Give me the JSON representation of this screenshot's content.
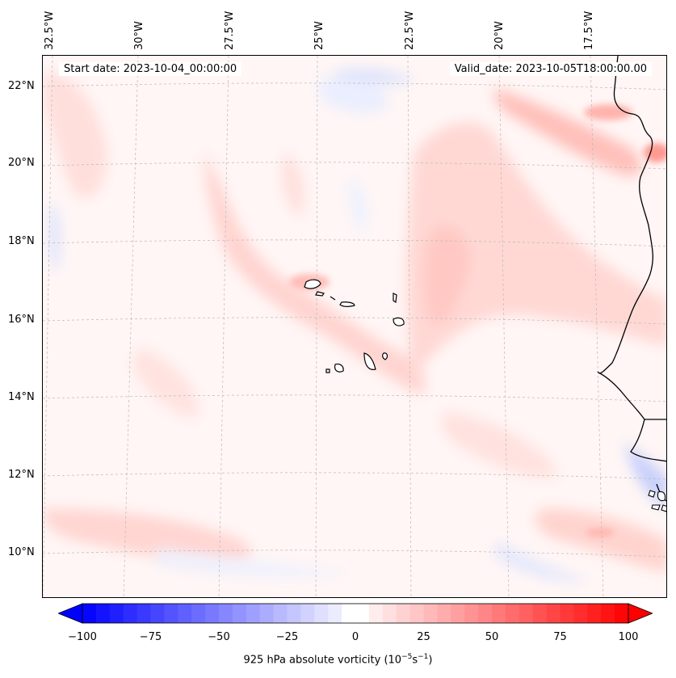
{
  "map": {
    "start_date": "Start date: 2023-10-04_00:00:00",
    "valid_date": "Valid_date: 2023-10-05T18:00:00.00",
    "lon_labels": [
      "32.5°W",
      "30°W",
      "27.5°W",
      "25°W",
      "22.5°W",
      "20°W",
      "17.5°W"
    ],
    "lat_labels": [
      "22°N",
      "20°N",
      "18°N",
      "16°N",
      "14°N",
      "12°N",
      "10°N"
    ],
    "variable": "925 hPa absolute vorticity",
    "colors": {
      "positive_max": "#ff0000",
      "negative_max": "#0000ff",
      "zero": "#ffffff",
      "coastline": "#000000"
    }
  },
  "colorbar": {
    "ticks": [
      "−100",
      "−75",
      "−50",
      "−25",
      "0",
      "25",
      "50",
      "75",
      "100"
    ],
    "title_prefix": "925 hPa absolute vorticity (10",
    "title_exp1": "−5",
    "title_mid": "s",
    "title_exp2": "−1",
    "title_suffix": ")"
  }
}
